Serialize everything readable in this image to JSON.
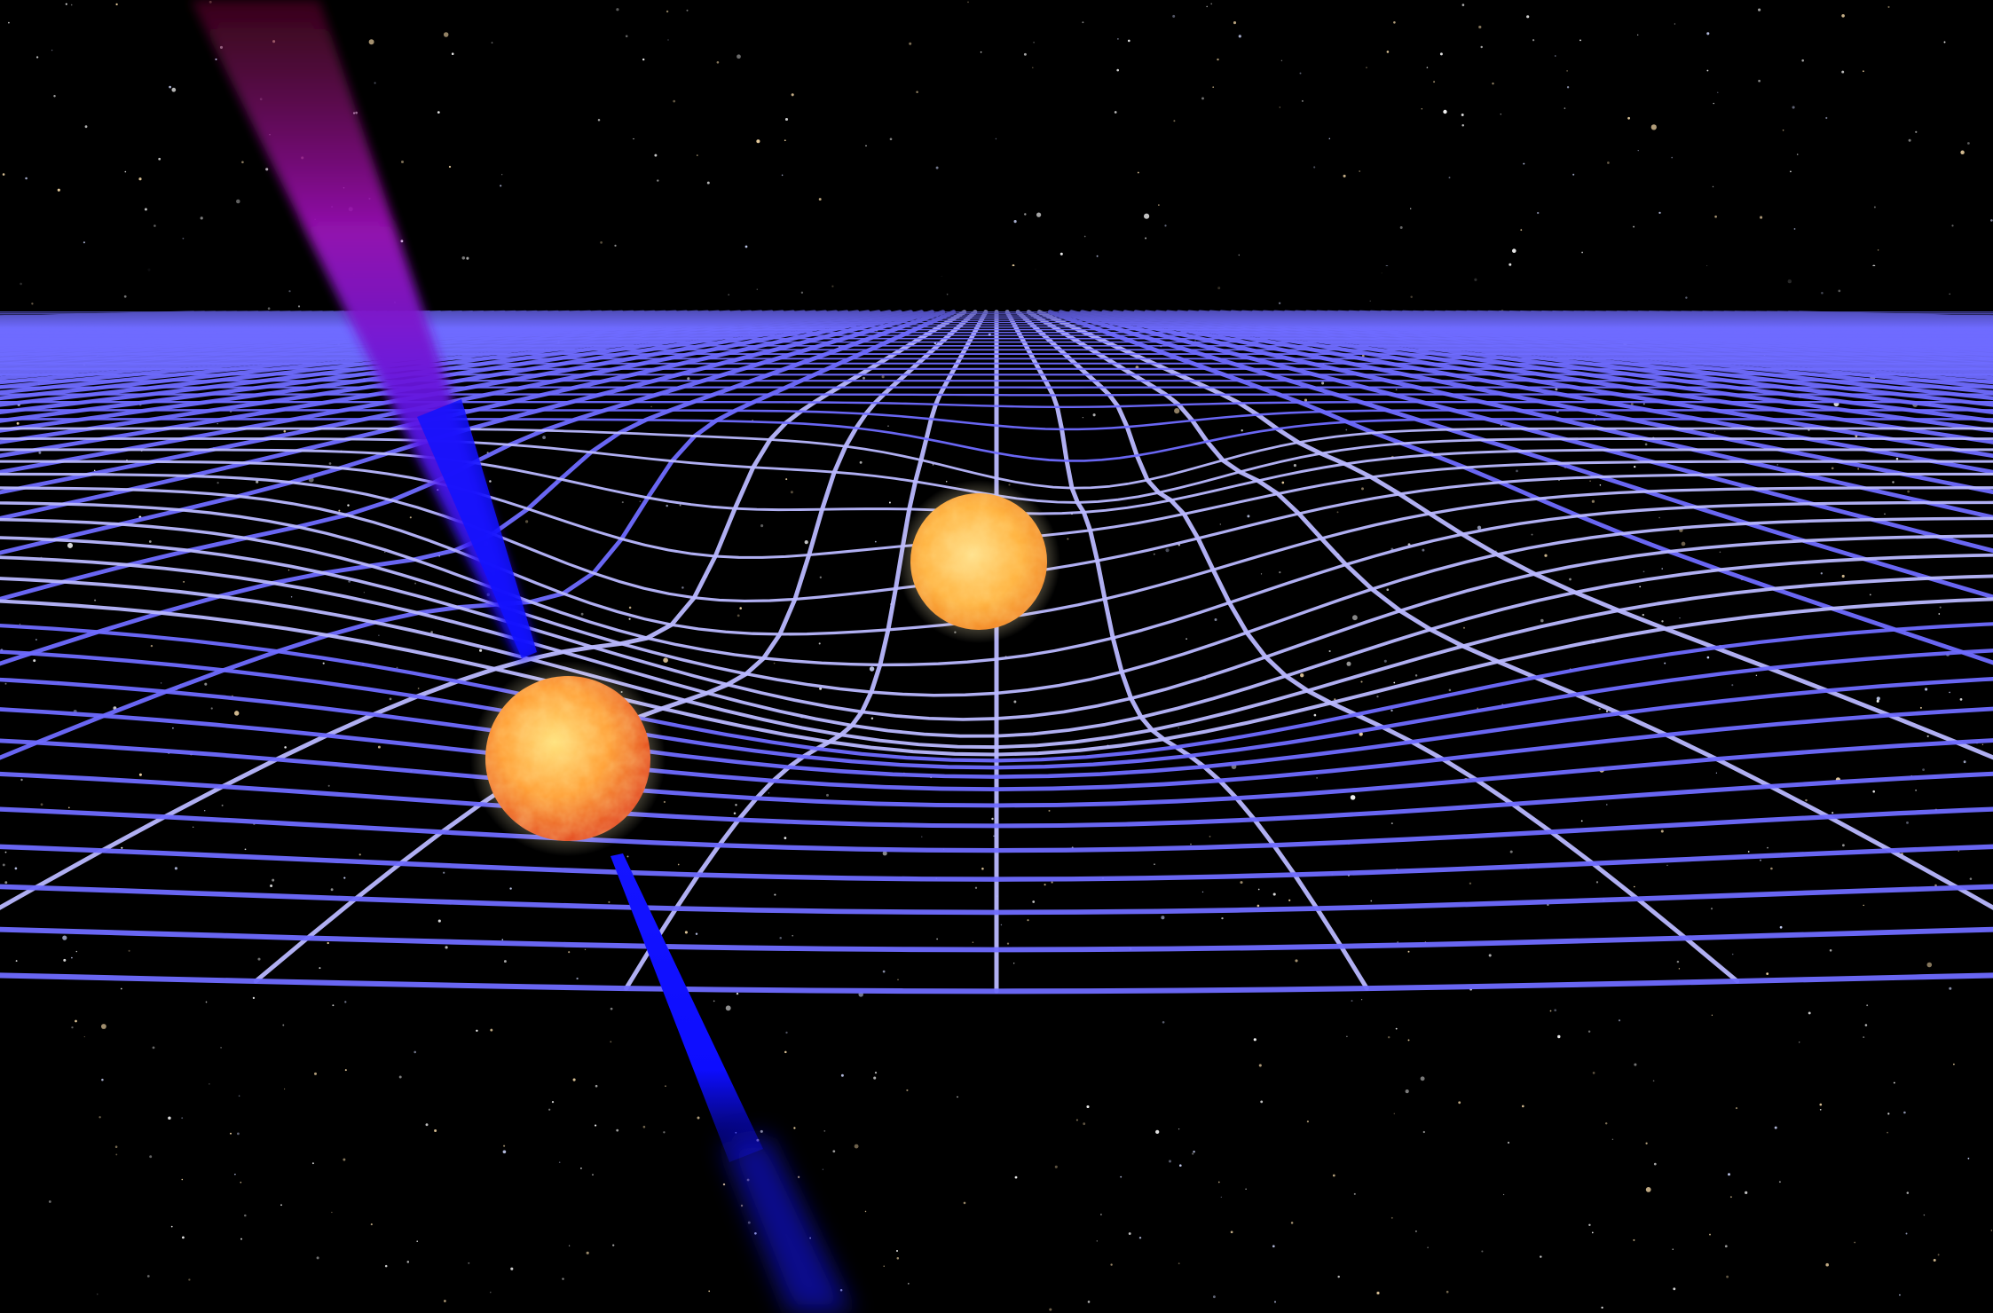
{
  "scene": {
    "subject": "binary-star-spacetime-illustration",
    "palette": {
      "sky": "#000000",
      "grid": "#6f6cff",
      "grid_center": "#b9b8ff",
      "jet_top": "#7a0a3c",
      "jet_mid": "#8f12c8",
      "jet_base": "#1010ff",
      "star_core": "#ffd15a",
      "star_edge": "#e9461c"
    },
    "objects": [
      {
        "kind": "star",
        "icon": "pulsar-star-icon"
      },
      {
        "kind": "star",
        "icon": "companion-star-icon"
      },
      {
        "kind": "beam",
        "icon": "upper-radio-beam"
      },
      {
        "kind": "beam",
        "icon": "lower-radio-beam"
      },
      {
        "kind": "mesh",
        "icon": "spacetime-grid"
      },
      {
        "kind": "background",
        "icon": "starfield"
      }
    ]
  }
}
